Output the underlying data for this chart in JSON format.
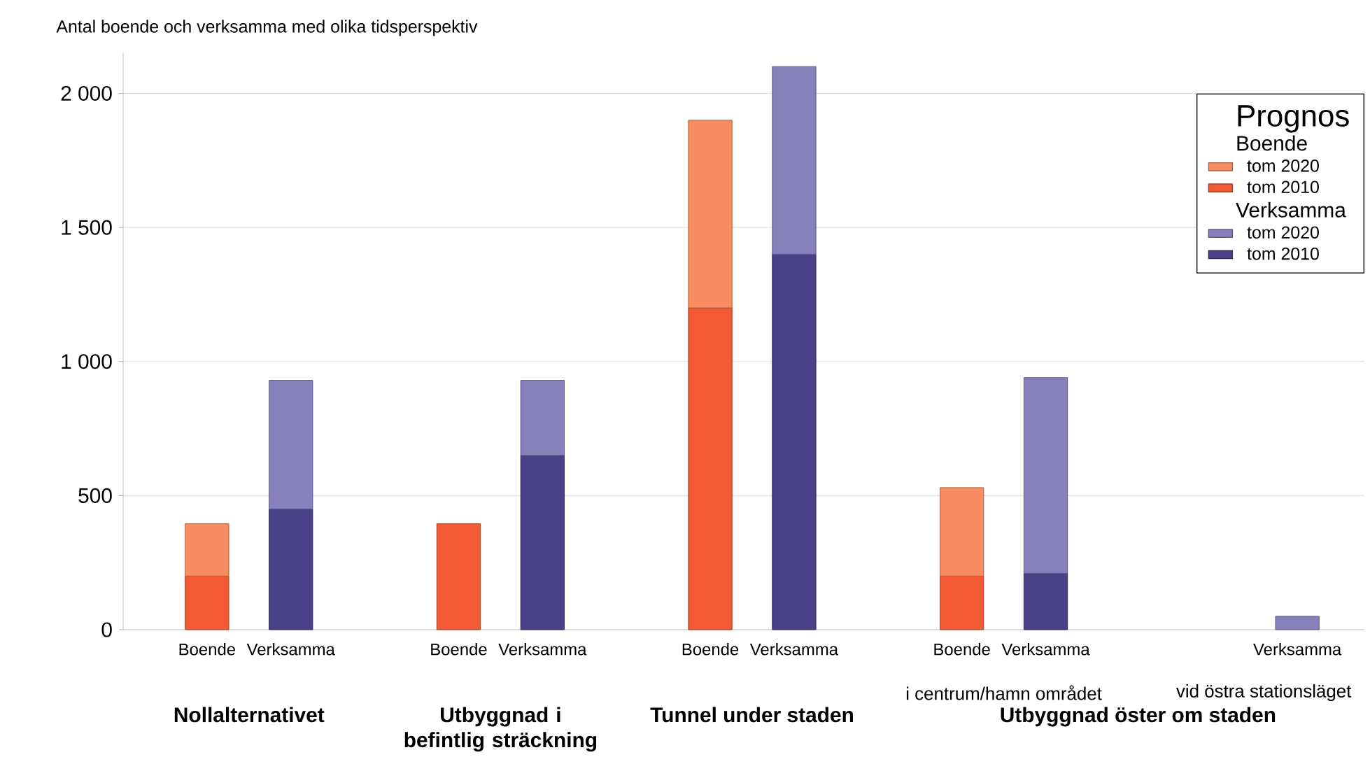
{
  "chart_data": {
    "type": "bar",
    "title": "Antal boende och verksamma med olika tidsperspektiv",
    "categories": [
      "Boende",
      "Verksamma",
      null,
      "Boende",
      "Verksamma",
      null,
      "Boende",
      "Verksamma",
      null,
      "Boende",
      "Verksamma",
      null,
      null,
      "Verksamma"
    ],
    "series": [
      {
        "name": "tom 2010",
        "color": "#f15a35",
        "values": [
          200,
          null,
          null,
          395,
          null,
          null,
          1200,
          null,
          null,
          200,
          null,
          null,
          null,
          null
        ]
      },
      {
        "name": "tom 2020",
        "color": "#fa8c62",
        "values": [
          195,
          null,
          null,
          null,
          null,
          null,
          700,
          null,
          null,
          330,
          null,
          null,
          null,
          null
        ]
      },
      {
        "name": "tom 2010",
        "color": "#4a4088",
        "values": [
          null,
          450,
          null,
          null,
          650,
          null,
          null,
          1400,
          null,
          null,
          210,
          null,
          null,
          null
        ]
      },
      {
        "name": "tom 2020",
        "color": "#8880bb",
        "values": [
          null,
          480,
          null,
          null,
          280,
          null,
          null,
          700,
          null,
          null,
          730,
          null,
          null,
          50
        ]
      }
    ],
    "stacked": true,
    "ylim": [
      0,
      2150
    ],
    "yticks": [
      0,
      500,
      {
        "value": 1000,
        "label": "1 000"
      },
      {
        "value": 1500,
        "label": "1 500"
      },
      {
        "value": 2000,
        "label": "2 000"
      }
    ],
    "grid": "y",
    "legend": "top right",
    "legend_title": "Prognos",
    "annotations": [
      "Nollalternativet",
      "Utbyggnad i befintlig sträckning",
      "Tunnel under staden",
      "Utbyggnad öster om staden",
      "i centrum/hamn området",
      "vid östra stationsläget",
      "Boende",
      "Verksamma"
    ]
  }
}
